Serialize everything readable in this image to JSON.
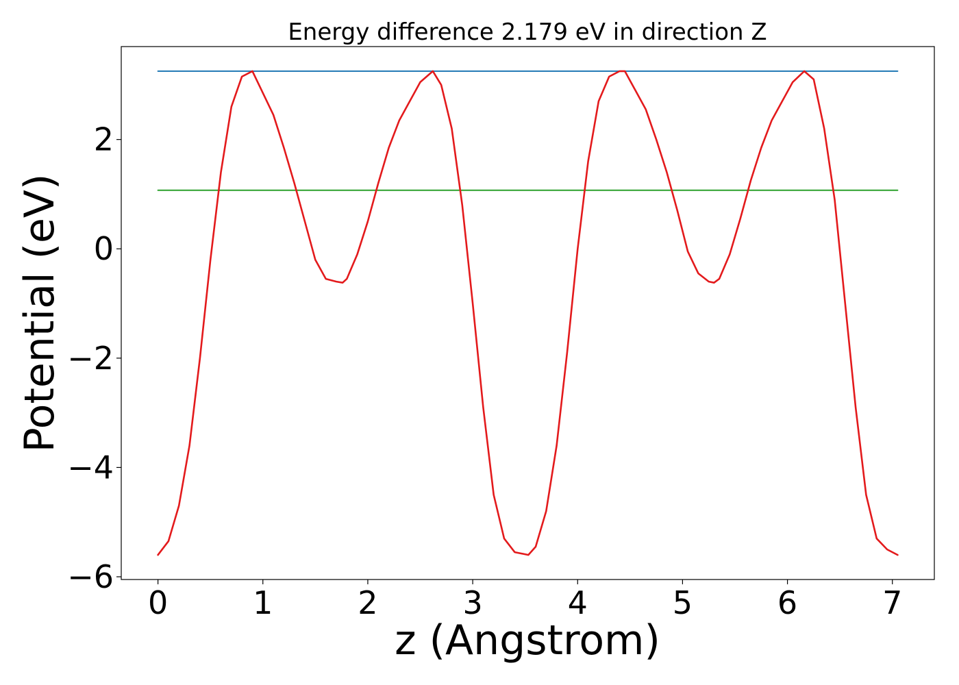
{
  "chart_data": {
    "type": "line",
    "title": "Energy difference 2.179 eV in direction Z",
    "xlabel": "z (Angstrom)",
    "ylabel": "Potential (eV)",
    "xlim": [
      -0.35,
      7.4
    ],
    "ylim": [
      -6.05,
      3.7
    ],
    "xticks": [
      0,
      1,
      2,
      3,
      4,
      5,
      6,
      7
    ],
    "xtick_labels": [
      "0",
      "1",
      "2",
      "3",
      "4",
      "5",
      "6",
      "7"
    ],
    "yticks": [
      -6,
      -4,
      -2,
      0,
      2
    ],
    "ytick_labels": [
      "−6",
      "−4",
      "−2",
      "0",
      "2"
    ],
    "grid": false,
    "series": [
      {
        "color": "#e31a1c",
        "x": [
          0.0,
          0.1,
          0.2,
          0.3,
          0.4,
          0.5,
          0.6,
          0.7,
          0.8,
          0.9,
          1.0,
          1.1,
          1.2,
          1.3,
          1.4,
          1.5,
          1.6,
          1.7,
          1.76,
          1.8,
          1.9,
          2.0,
          2.1,
          2.2,
          2.3,
          2.4,
          2.5,
          2.62,
          2.7,
          2.8,
          2.9,
          3.0,
          3.1,
          3.2,
          3.3,
          3.4,
          3.53,
          3.6,
          3.7,
          3.8,
          3.9,
          4.0,
          4.1,
          4.2,
          4.3,
          4.4,
          4.45,
          4.55,
          4.65,
          4.75,
          4.85,
          4.95,
          5.05,
          5.15,
          5.25,
          5.3,
          5.35,
          5.45,
          5.55,
          5.65,
          5.75,
          5.85,
          5.95,
          6.05,
          6.16,
          6.25,
          6.35,
          6.45,
          6.55,
          6.65,
          6.75,
          6.85,
          6.95,
          7.05
        ],
        "y": [
          -5.6,
          -5.35,
          -4.7,
          -3.6,
          -2.0,
          -0.2,
          1.4,
          2.6,
          3.15,
          3.25,
          2.85,
          2.45,
          1.85,
          1.2,
          0.5,
          -0.2,
          -0.55,
          -0.6,
          -0.62,
          -0.55,
          -0.1,
          0.5,
          1.2,
          1.85,
          2.35,
          2.7,
          3.05,
          3.25,
          3.0,
          2.2,
          0.8,
          -1.0,
          -2.9,
          -4.5,
          -5.3,
          -5.55,
          -5.6,
          -5.45,
          -4.8,
          -3.6,
          -1.9,
          0.0,
          1.6,
          2.7,
          3.15,
          3.25,
          3.25,
          2.9,
          2.55,
          2.0,
          1.4,
          0.7,
          -0.05,
          -0.45,
          -0.6,
          -0.62,
          -0.55,
          -0.1,
          0.55,
          1.25,
          1.85,
          2.35,
          2.7,
          3.05,
          3.25,
          3.1,
          2.2,
          0.9,
          -1.0,
          -2.9,
          -4.5,
          -5.3,
          -5.5,
          -5.6
        ]
      },
      {
        "color": "#1f77b4",
        "x": [
          0.0,
          7.05
        ],
        "y": [
          3.25,
          3.25
        ]
      },
      {
        "color": "#2ca02c",
        "x": [
          0.0,
          7.05
        ],
        "y": [
          1.071,
          1.071
        ]
      }
    ]
  }
}
